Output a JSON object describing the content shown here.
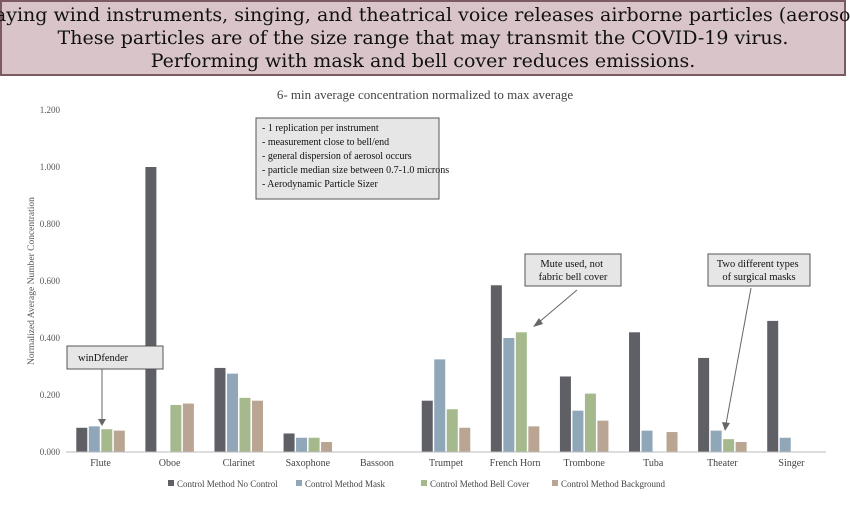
{
  "banner": {
    "lines": [
      "Playing wind instruments, singing, and theatrical voice releases airborne particles (aerosol).",
      "These particles are of the size range that may transmit the COVID-19 virus.",
      "Performing with mask and bell cover reduces emissions."
    ]
  },
  "chart_data": {
    "type": "bar",
    "title": "6- min average concentration normalized to max average",
    "xlabel": "",
    "ylabel": "Normalized Average Number Concentration",
    "ylim": [
      0,
      1.2
    ],
    "yticks": [
      "0.000",
      "0.200",
      "0.400",
      "0.600",
      "0.800",
      "1.000",
      "1.200"
    ],
    "grid": false,
    "legend": "bottom",
    "categories": [
      "Flute",
      "Oboe",
      "Clarinet",
      "Saxophone",
      "Bassoon",
      "Trumpet",
      "French Horn",
      "Trombone",
      "Tuba",
      "Theater",
      "Singer"
    ],
    "series": [
      {
        "name": "Control Method No Control",
        "color": "#5f5f66",
        "values": [
          0.085,
          1.0,
          0.295,
          0.065,
          null,
          0.18,
          0.585,
          0.265,
          0.42,
          0.33,
          0.46
        ]
      },
      {
        "name": "Control Method Mask",
        "color": "#8fa7b8",
        "values": [
          0.09,
          null,
          0.275,
          0.05,
          null,
          0.325,
          0.4,
          0.145,
          0.075,
          0.075,
          0.05
        ]
      },
      {
        "name": "Control Method Bell Cover",
        "color": "#a6b98d",
        "values": [
          0.08,
          0.165,
          0.19,
          0.05,
          null,
          0.15,
          0.42,
          0.205,
          null,
          0.045,
          null
        ]
      },
      {
        "name": "Control Method Background",
        "color": "#b9a592",
        "values": [
          0.075,
          0.17,
          0.18,
          0.035,
          null,
          0.085,
          0.09,
          0.11,
          0.07,
          0.035,
          null
        ]
      }
    ],
    "annotations": {
      "notes": [
        "- 1 replication per instrument",
        "- measurement close to bell/end",
        "- general dispersion of aerosol occurs",
        "- particle median size between 0.7-1.0 microns",
        "- Aerodynamic Particle Sizer"
      ],
      "windfender": "winDfender",
      "mute_lines": [
        "Mute used, not",
        "fabric bell cover"
      ],
      "masks_lines": [
        "Two different types",
        "of surgical masks"
      ]
    }
  }
}
